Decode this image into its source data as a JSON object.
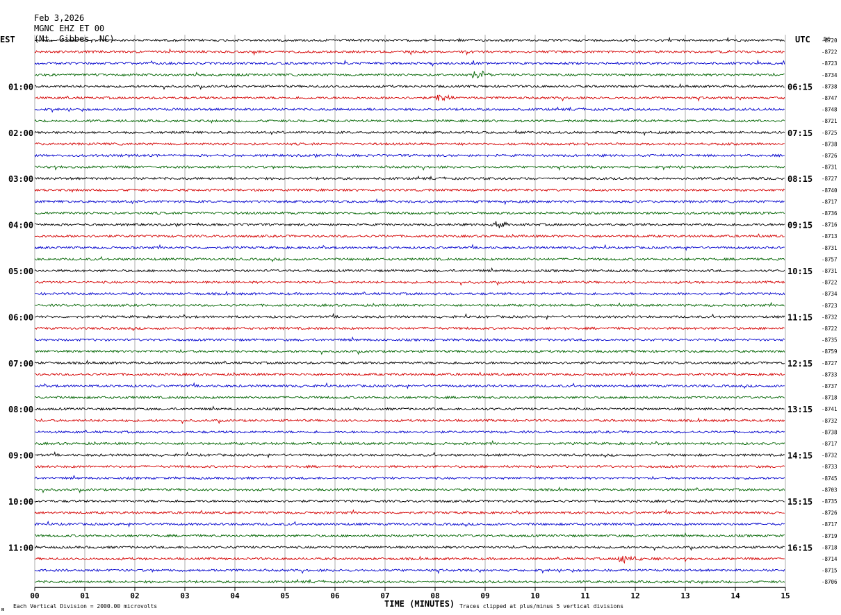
{
  "header": {
    "date": "Feb 3,2026",
    "station": "MGNC EHZ ET 00",
    "location": "(Mt. Gibbes, NC)"
  },
  "labels": {
    "left_timezone": "EST",
    "right_timezone": "UTC",
    "dc_header": "DC",
    "footer_scale": "Each Vertical Division = 2000.00 microvolts",
    "footer_clip": "Traces clipped at plus/minus 5 vertical divisions",
    "corner_mark": "ᴍ"
  },
  "colors": {
    "trace_cycle": [
      "#000000",
      "#d40000",
      "#0000cc",
      "#006400"
    ],
    "grid": "#888888",
    "background": "#ffffff"
  },
  "chart_data": {
    "type": "line",
    "title": "",
    "xlabel": "TIME (MINUTES)",
    "ylabel": "",
    "xlim": [
      0,
      15
    ],
    "x_ticks": [
      "00",
      "01",
      "02",
      "03",
      "04",
      "05",
      "06",
      "07",
      "08",
      "09",
      "10",
      "11",
      "12",
      "13",
      "14",
      "15"
    ],
    "grid": "vertical lines every minute",
    "traces_per_hour": 4,
    "trace_count": 48,
    "left_hour_labels": [
      "01:00",
      "02:00",
      "03:00",
      "04:00",
      "05:00",
      "06:00",
      "07:00",
      "08:00",
      "09:00",
      "10:00",
      "11:00"
    ],
    "right_hour_labels": [
      "06:15",
      "07:15",
      "08:15",
      "09:15",
      "10:15",
      "11:15",
      "12:15",
      "13:15",
      "14:15",
      "15:15",
      "16:15"
    ],
    "dc_offsets": [
      "-8720",
      "-8722",
      "-8723",
      "-8734",
      "-8738",
      "-8747",
      "-8748",
      "-8721",
      "-8725",
      "-8738",
      "-8726",
      "-8731",
      "-8727",
      "-8740",
      "-8717",
      "-8736",
      "-8716",
      "-8713",
      "-8731",
      "-8757",
      "-8731",
      "-8722",
      "-8734",
      "-8723",
      "-8732",
      "-8722",
      "-8735",
      "-8759",
      "-8727",
      "-8733",
      "-8737",
      "-8718",
      "-8741",
      "-8732",
      "-8738",
      "-8717",
      "-8732",
      "-8733",
      "-8745",
      "-8703",
      "-8735",
      "-8726",
      "-8717",
      "-8719",
      "-8718",
      "-8714",
      "-8715",
      "-8706"
    ],
    "events": [
      {
        "trace": 3,
        "minute": 8.8,
        "amplitude": "moderate"
      },
      {
        "trace": 45,
        "minute": 11.7,
        "amplitude": "moderate"
      },
      {
        "trace": 16,
        "minute": 9.2,
        "amplitude": "small"
      },
      {
        "trace": 5,
        "minute": 8.05,
        "amplitude": "small"
      }
    ]
  }
}
